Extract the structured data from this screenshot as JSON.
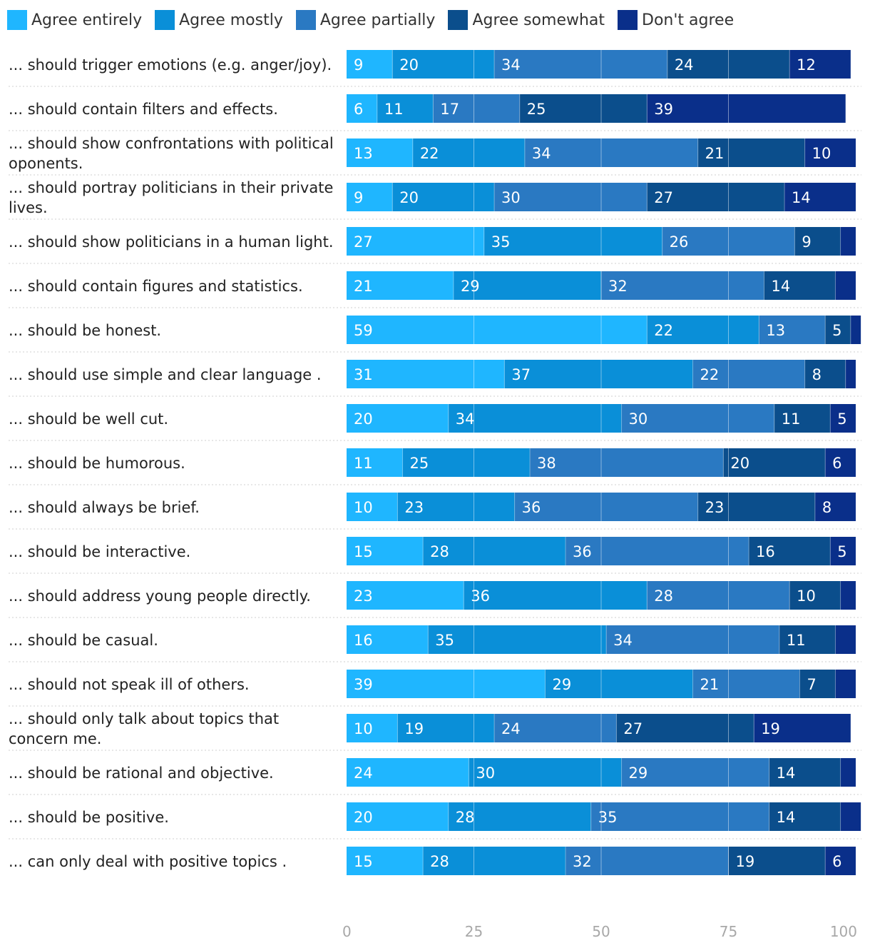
{
  "chart_data": {
    "type": "bar",
    "orientation": "horizontal",
    "stacked": true,
    "series": [
      {
        "name": "Agree entirely",
        "color": "#1fb6ff",
        "values": [
          9,
          6,
          13,
          9,
          27,
          21,
          59,
          31,
          20,
          11,
          10,
          15,
          23,
          16,
          39,
          10,
          24,
          20,
          15
        ]
      },
      {
        "name": "Agree mostly",
        "color": "#0a8fd8",
        "values": [
          20,
          11,
          22,
          20,
          35,
          29,
          22,
          37,
          34,
          25,
          23,
          28,
          36,
          35,
          29,
          19,
          30,
          28,
          28
        ]
      },
      {
        "name": "Agree partially",
        "color": "#2a79c2",
        "values": [
          34,
          17,
          34,
          30,
          26,
          32,
          13,
          22,
          30,
          38,
          36,
          36,
          28,
          34,
          21,
          24,
          29,
          35,
          32
        ]
      },
      {
        "name": "Agree somewhat",
        "color": "#0b4e8c",
        "values": [
          24,
          25,
          21,
          27,
          9,
          14,
          5,
          8,
          11,
          20,
          23,
          16,
          10,
          11,
          7,
          27,
          14,
          14,
          19
        ]
      },
      {
        "name": "Don't agree",
        "color": "#0a2f8a",
        "values": [
          12,
          39,
          10,
          14,
          3,
          4,
          2,
          2,
          5,
          6,
          8,
          5,
          3,
          4,
          4,
          19,
          3,
          4,
          6
        ]
      }
    ],
    "categories": [
      "... should trigger emotions (e.g. anger/joy).",
      "... should contain filters and effects.",
      "... should show confrontations with political oponents.",
      "... should portray politicians in their private lives.",
      "... should show politicians in a human light.",
      "... should contain figures and statistics.",
      "... should be honest.",
      "... should use simple and clear language .",
      "... should be well cut.",
      "... should be humorous.",
      "... should always be brief.",
      "... should be interactive.",
      "... should address young people directly.",
      "... should be casual.",
      "... should not speak ill of others.",
      "... should only talk about topics that concern me.",
      "... should be rational and objective.",
      "... should be positive.",
      "... can only deal with positive topics ."
    ],
    "xlim": [
      0,
      100
    ],
    "xticks": [
      0,
      25,
      50,
      75,
      100
    ],
    "grid": true,
    "legend_position": "top-left",
    "value_label_min": 5
  }
}
